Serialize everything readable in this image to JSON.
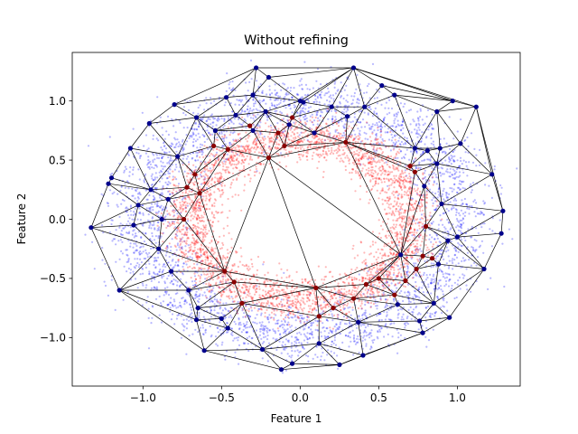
{
  "chart_data": {
    "type": "scatter",
    "title": "Without refining",
    "xlabel": "Feature 1",
    "ylabel": "Feature 2",
    "xlim": [
      -1.45,
      1.4
    ],
    "ylim": [
      -1.41,
      1.41
    ],
    "x_ticks": [
      -1.0,
      -0.5,
      0.0,
      0.5,
      1.0
    ],
    "x_tick_labels": [
      "−1.0",
      "−0.5",
      "0.0",
      "0.5",
      "1.0"
    ],
    "y_ticks": [
      -1.0,
      -0.5,
      0.0,
      0.5,
      1.0
    ],
    "y_tick_labels": [
      "−1.0",
      "−0.5",
      "0.0",
      "0.5",
      "1.0"
    ],
    "grid": false,
    "legend": false,
    "colors": {
      "outer_class": "#0000ff",
      "inner_class": "#ff0000",
      "outer_nodes": "#00008b",
      "inner_nodes": "#8b0000",
      "edges": "#000000"
    },
    "series": [
      {
        "description_of_distribution": "outer ring",
        "color_key": "outer_class",
        "ring_radius_center": 1.0,
        "ring_radius_spread": 0.13,
        "count": 3500
      },
      {
        "description_of_distribution": "inner ring",
        "color_key": "inner_class",
        "ring_radius_center": 0.7,
        "ring_radius_spread": 0.09,
        "count": 3500
      }
    ],
    "outer_nodes": [
      [
        -1.33,
        -0.07
      ],
      [
        -1.22,
        0.3
      ],
      [
        -1.2,
        0.35
      ],
      [
        -1.15,
        -0.6
      ],
      [
        -1.08,
        0.6
      ],
      [
        -1.06,
        -0.05
      ],
      [
        -1.03,
        0.12
      ],
      [
        -0.96,
        0.81
      ],
      [
        -0.95,
        0.25
      ],
      [
        -0.9,
        -0.25
      ],
      [
        -0.88,
        0.0
      ],
      [
        -0.84,
        0.17
      ],
      [
        -0.82,
        -0.44
      ],
      [
        -0.8,
        0.97
      ],
      [
        -0.78,
        0.53
      ],
      [
        -0.71,
        -0.6
      ],
      [
        -0.66,
        0.86
      ],
      [
        -0.66,
        -0.85
      ],
      [
        -0.65,
        -0.75
      ],
      [
        -0.61,
        -1.11
      ],
      [
        -0.54,
        0.75
      ],
      [
        -0.5,
        -0.84
      ],
      [
        -0.46,
        -0.92
      ],
      [
        -0.41,
        0.88
      ],
      [
        -0.3,
        1.05
      ],
      [
        -0.28,
        1.28
      ],
      [
        -0.24,
        -1.1
      ],
      [
        -0.22,
        0.91
      ],
      [
        -0.12,
        -1.27
      ],
      [
        -0.07,
        0.8
      ],
      [
        0.02,
        0.99
      ],
      [
        0.09,
        0.73
      ],
      [
        0.12,
        -1.05
      ],
      [
        0.25,
        -1.23
      ],
      [
        0.4,
        -1.15
      ],
      [
        0.62,
        -0.72
      ],
      [
        0.76,
        -0.86
      ],
      [
        0.78,
        -0.96
      ],
      [
        0.85,
        -0.71
      ],
      [
        0.88,
        -0.38
      ],
      [
        0.95,
        -0.83
      ],
      [
        1.0,
        -0.15
      ],
      [
        1.17,
        -0.42
      ],
      [
        1.22,
        0.38
      ],
      [
        1.28,
        -0.12
      ],
      [
        1.29,
        0.07
      ],
      [
        0.52,
        1.13
      ],
      [
        0.6,
        1.05
      ],
      [
        0.3,
        0.87
      ],
      [
        0.41,
        0.95
      ],
      [
        0.73,
        0.6
      ],
      [
        0.81,
        0.58
      ],
      [
        0.87,
        0.47
      ],
      [
        0.9,
        0.13
      ],
      [
        0.94,
        -0.18
      ],
      [
        0.97,
        1.0
      ],
      [
        1.12,
        0.95
      ],
      [
        0.79,
        0.28
      ],
      [
        0.89,
        0.6
      ],
      [
        1.02,
        0.64
      ],
      [
        0.87,
        0.91
      ],
      [
        0.34,
        1.28
      ],
      [
        0.0,
        1.0
      ],
      [
        -0.2,
        1.2
      ],
      [
        -0.47,
        1.03
      ],
      [
        0.2,
        0.95
      ],
      [
        -0.3,
        0.75
      ],
      [
        0.64,
        -0.3
      ],
      [
        0.37,
        -0.87
      ],
      [
        -0.05,
        -1.22
      ]
    ],
    "inner_nodes": [
      [
        -0.74,
        0.0
      ],
      [
        -0.72,
        0.27
      ],
      [
        -0.67,
        0.38
      ],
      [
        -0.64,
        0.22
      ],
      [
        -0.55,
        0.62
      ],
      [
        -0.46,
        0.59
      ],
      [
        -0.42,
        -0.53
      ],
      [
        -0.37,
        -0.71
      ],
      [
        -0.2,
        0.52
      ],
      [
        -0.14,
        0.73
      ],
      [
        -0.1,
        0.62
      ],
      [
        -0.05,
        0.86
      ],
      [
        0.1,
        -0.58
      ],
      [
        0.12,
        -0.82
      ],
      [
        0.21,
        -0.75
      ],
      [
        0.29,
        0.65
      ],
      [
        0.34,
        -0.67
      ],
      [
        0.42,
        -0.55
      ],
      [
        0.5,
        -0.5
      ],
      [
        0.6,
        -0.64
      ],
      [
        0.67,
        -0.52
      ],
      [
        0.74,
        -0.42
      ],
      [
        0.78,
        -0.31
      ],
      [
        0.8,
        -0.06
      ],
      [
        0.73,
        0.4
      ],
      [
        0.7,
        0.45
      ],
      [
        0.84,
        -0.33
      ],
      [
        -0.48,
        -0.44
      ],
      [
        -0.32,
        0.79
      ]
    ]
  }
}
